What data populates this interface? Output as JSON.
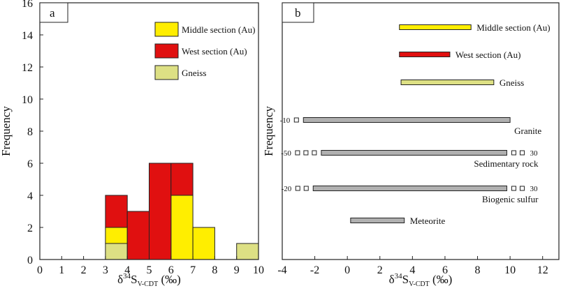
{
  "chart_data": [
    {
      "panel_label": "a",
      "type": "bar",
      "stacked": true,
      "xlabel_main": "δ",
      "xlabel_sup": "34",
      "xlabel_s": "S",
      "xlabel_sub": "V-CDT",
      "xlabel_unit": " (‰)",
      "ylabel": "Frequency",
      "xlim": [
        0,
        10
      ],
      "ylim": [
        0,
        16
      ],
      "xticks": [
        "0",
        "1",
        "2",
        "3",
        "4",
        "5",
        "6",
        "7",
        "8",
        "9",
        "10"
      ],
      "yticks": [
        "0",
        "2",
        "4",
        "6",
        "8",
        "10",
        "12",
        "14",
        "16"
      ],
      "bin_width": 1,
      "series": [
        {
          "name": "Gneiss",
          "color": "#dde084",
          "bins": [
            {
              "x0": 3,
              "value": 1
            },
            {
              "x0": 9,
              "value": 1
            }
          ]
        },
        {
          "name": "Middle section (Au)",
          "color": "#ffee00",
          "bins": [
            {
              "x0": 3,
              "value": 1
            },
            {
              "x0": 6,
              "value": 4
            },
            {
              "x0": 7,
              "value": 2
            }
          ]
        },
        {
          "name": "West section (Au)",
          "color": "#e01010",
          "bins": [
            {
              "x0": 3,
              "value": 2
            },
            {
              "x0": 4,
              "value": 3
            },
            {
              "x0": 5,
              "value": 6
            },
            {
              "x0": 6,
              "value": 2
            }
          ]
        }
      ],
      "legend": [
        {
          "name": "Middle section (Au)",
          "color": "#ffee00"
        },
        {
          "name": "West section (Au)",
          "color": "#e01010"
        },
        {
          "name": "Gneiss",
          "color": "#dde084"
        }
      ]
    },
    {
      "panel_label": "b",
      "type": "range",
      "xlabel_main": "δ",
      "xlabel_sup": "34",
      "xlabel_s": "S",
      "xlabel_sub": "V-CDT",
      "xlabel_unit": " (‰)",
      "ylabel": "Frequency",
      "xlim": [
        -4,
        13
      ],
      "xticks": [
        "-4",
        "-2",
        "0",
        "2",
        "4",
        "6",
        "8",
        "10",
        "12"
      ],
      "ranges": [
        {
          "name": "Middle section (Au)",
          "min": 3.2,
          "max": 7.6,
          "color": "#ffee00",
          "label_pos": "right"
        },
        {
          "name": "West section (Au)",
          "min": 3.2,
          "max": 6.3,
          "color": "#e01010",
          "label_pos": "right"
        },
        {
          "name": "Gneiss",
          "min": 3.3,
          "max": 9.0,
          "color": "#dde084",
          "label_pos": "right"
        },
        {
          "name": "Granite",
          "min": -2.7,
          "max": 10.0,
          "color": "#b0b0b0",
          "label_pos": "below",
          "left_ext": "-10",
          "left_dashes": 1,
          "right_ext": "",
          "right_dashes": 0
        },
        {
          "name": "Sedimentary rock",
          "min": -1.6,
          "max": 9.8,
          "color": "#b0b0b0",
          "label_pos": "below",
          "left_ext": "-50",
          "left_dashes": 3,
          "right_ext": "30",
          "right_dashes": 2
        },
        {
          "name": "Biogenic sulfur",
          "min": -2.1,
          "max": 9.8,
          "color": "#b0b0b0",
          "label_pos": "below",
          "left_ext": "-20",
          "left_dashes": 2,
          "right_ext": "30",
          "right_dashes": 2
        },
        {
          "name": "Meteorite",
          "min": 0.2,
          "max": 3.5,
          "color": "#b0b0b0",
          "label_pos": "right",
          "left_ext": "",
          "left_dashes": 0,
          "right_ext": "",
          "right_dashes": 0
        }
      ]
    }
  ]
}
